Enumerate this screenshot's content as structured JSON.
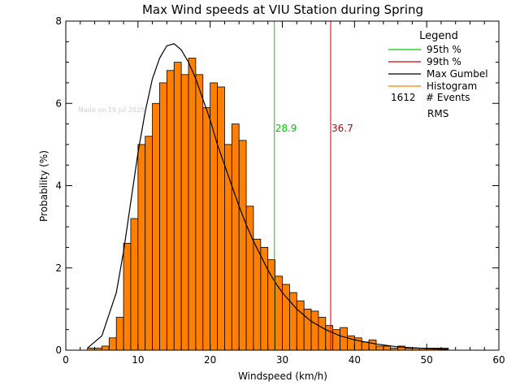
{
  "chart_data": {
    "type": "bar",
    "title": "Max Wind speeds at VIU Station during Spring",
    "xlabel": "Windspeed (km/h)",
    "ylabel": "Probability (%)",
    "xlim": [
      0,
      60
    ],
    "ylim": [
      0,
      8
    ],
    "xticks": [
      "0",
      "10",
      "20",
      "30",
      "40",
      "50",
      "60"
    ],
    "yticks": [
      "0",
      "2",
      "4",
      "6",
      "8"
    ],
    "watermark": "Made on 19 Jul 2025",
    "histogram": {
      "bin_width": 1,
      "bin_starts": [
        3,
        4,
        5,
        6,
        7,
        8,
        9,
        10,
        11,
        12,
        13,
        14,
        15,
        16,
        17,
        18,
        19,
        20,
        21,
        22,
        23,
        24,
        25,
        26,
        27,
        28,
        29,
        30,
        31,
        32,
        33,
        34,
        35,
        36,
        37,
        38,
        39,
        40,
        41,
        42,
        43,
        44,
        45,
        46,
        47,
        48,
        49,
        50,
        51,
        52
      ],
      "values": [
        0.05,
        0.05,
        0.1,
        0.3,
        0.8,
        2.6,
        3.2,
        5.0,
        5.2,
        6.0,
        6.5,
        6.8,
        7.0,
        6.7,
        7.1,
        6.7,
        5.9,
        6.5,
        6.4,
        5.0,
        5.5,
        5.1,
        3.5,
        2.7,
        2.5,
        2.2,
        1.8,
        1.6,
        1.4,
        1.2,
        1.0,
        0.95,
        0.8,
        0.6,
        0.5,
        0.55,
        0.35,
        0.3,
        0.2,
        0.25,
        0.1,
        0.1,
        0.05,
        0.1,
        0.05,
        0.05,
        0.05,
        0.05,
        0.05,
        0.05
      ],
      "color": "#ff8000"
    },
    "gumbel_curve": {
      "color": "#000000",
      "x": [
        3,
        5,
        7,
        8,
        9,
        10,
        11,
        12,
        13,
        14,
        15,
        16,
        17,
        18,
        19,
        20,
        21,
        22,
        23,
        24,
        25,
        26,
        27,
        28,
        29,
        30,
        32,
        34,
        36,
        38,
        40,
        43,
        46,
        50,
        53
      ],
      "y": [
        0.05,
        0.35,
        1.4,
        2.4,
        3.6,
        4.8,
        5.8,
        6.6,
        7.1,
        7.4,
        7.45,
        7.3,
        7.0,
        6.6,
        6.1,
        5.6,
        5.0,
        4.5,
        4.0,
        3.5,
        3.05,
        2.65,
        2.3,
        1.95,
        1.65,
        1.4,
        1.0,
        0.7,
        0.5,
        0.35,
        0.25,
        0.15,
        0.08,
        0.04,
        0.02
      ]
    },
    "percentile_lines": [
      {
        "label": "28.9",
        "x": 28.9,
        "color": "#00cc00"
      },
      {
        "label": "36.7",
        "x": 36.7,
        "color": "#cc0000"
      }
    ],
    "legend": {
      "title": "Legend",
      "placement": "top-right",
      "entries": [
        {
          "label": "95th %",
          "color": "#00cc00"
        },
        {
          "label": "99th %",
          "color": "#cc0000"
        },
        {
          "label": "Max Gumbel",
          "color": "#000000"
        },
        {
          "label": "Histogram",
          "color": "#ff8000"
        }
      ],
      "events_count": "1612",
      "events_label": "# Events",
      "rms_label": "RMS"
    }
  }
}
